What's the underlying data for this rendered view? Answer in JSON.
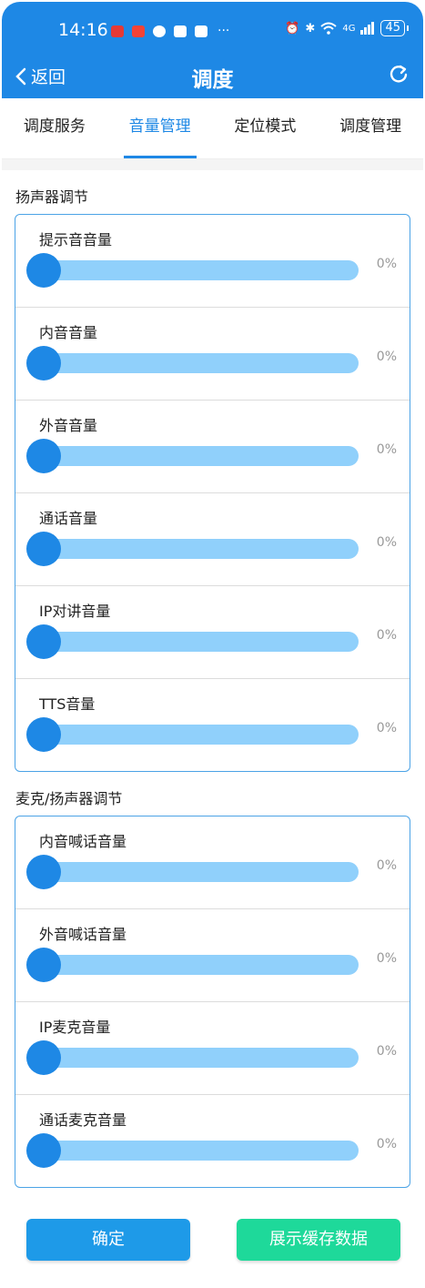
{
  "status_bar": {
    "time": "14:16",
    "network": "4G",
    "battery": "45",
    "more": "···"
  },
  "header": {
    "back_label": "返回",
    "title": "调度",
    "icons": {
      "back": "chevron-left-icon",
      "refresh": "refresh-icon"
    }
  },
  "tabs": [
    {
      "label": "调度服务",
      "active": false
    },
    {
      "label": "音量管理",
      "active": true
    },
    {
      "label": "定位模式",
      "active": false
    },
    {
      "label": "调度管理",
      "active": false
    }
  ],
  "sections": [
    {
      "title": "扬声器调节",
      "items": [
        {
          "label": "提示音音量",
          "value": "0%",
          "level": 0
        },
        {
          "label": "内音音量",
          "value": "0%",
          "level": 0
        },
        {
          "label": "外音音量",
          "value": "0%",
          "level": 0
        },
        {
          "label": "通话音量",
          "value": "0%",
          "level": 0
        },
        {
          "label": "IP对讲音量",
          "value": "0%",
          "level": 0
        },
        {
          "label": "TTS音量",
          "value": "0%",
          "level": 0
        }
      ]
    },
    {
      "title": "麦克/扬声器调节",
      "items": [
        {
          "label": "内音喊话音量",
          "value": "0%",
          "level": 0
        },
        {
          "label": "外音喊话音量",
          "value": "0%",
          "level": 0
        },
        {
          "label": "IP麦克音量",
          "value": "0%",
          "level": 0
        },
        {
          "label": "通话麦克音量",
          "value": "0%",
          "level": 0
        }
      ]
    }
  ],
  "buttons": {
    "confirm": "确定",
    "show_cache": "展示缓存数据"
  },
  "colors": {
    "primary": "#1e88e5",
    "track": "#90d0fb",
    "panel_border": "#4ba3e6",
    "confirm_button": "#1e9ae8",
    "cache_button": "#1ed99a"
  }
}
